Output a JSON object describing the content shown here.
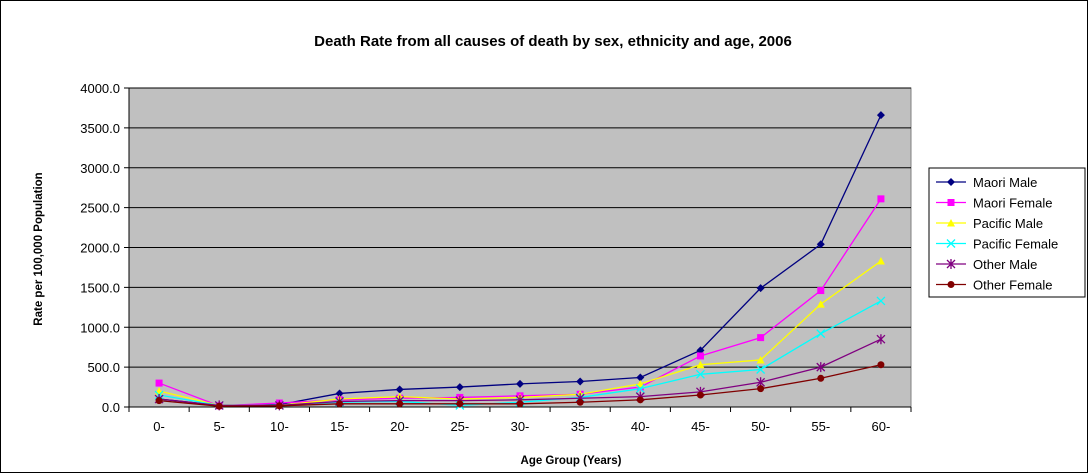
{
  "chart_data": {
    "type": "line",
    "title": "Death Rate from all causes of death by sex, ethnicity and age, 2006",
    "xlabel": "Age Group (Years)",
    "ylabel": "Rate per 100,000 Population",
    "categories": [
      "0-",
      "5-",
      "10-",
      "15-",
      "20-",
      "25-",
      "30-",
      "35-",
      "40-",
      "45-",
      "50-",
      "55-",
      "60-"
    ],
    "ylim": [
      0,
      4000
    ],
    "yticks": [
      "0.0",
      "500.0",
      "1000.0",
      "1500.0",
      "2000.0",
      "2500.0",
      "3000.0",
      "3500.0",
      "4000.0"
    ],
    "grid": true,
    "plot_background": "#C0C0C0",
    "legend_position": "right",
    "series": [
      {
        "name": "Maori Male",
        "color": "#000080",
        "marker": "diamond",
        "values": [
          100,
          20,
          30,
          170,
          220,
          250,
          290,
          320,
          370,
          710,
          1490,
          2040,
          3660
        ]
      },
      {
        "name": "Maori Female",
        "color": "#FF00FF",
        "marker": "square",
        "values": [
          300,
          15,
          50,
          90,
          110,
          120,
          140,
          160,
          250,
          640,
          870,
          1460,
          2610
        ]
      },
      {
        "name": "Pacific Male",
        "color": "#FFFF00",
        "marker": "triangle",
        "values": [
          200,
          20,
          20,
          100,
          130,
          100,
          120,
          160,
          290,
          530,
          590,
          1290,
          1830
        ]
      },
      {
        "name": "Pacific Female",
        "color": "#00FFFF",
        "marker": "x",
        "values": [
          150,
          20,
          20,
          60,
          70,
          20,
          60,
          120,
          230,
          410,
          470,
          920,
          1330
        ]
      },
      {
        "name": "Other Male",
        "color": "#800080",
        "marker": "star",
        "values": [
          100,
          20,
          20,
          70,
          80,
          80,
          90,
          110,
          130,
          190,
          310,
          500,
          850
        ]
      },
      {
        "name": "Other Female",
        "color": "#800000",
        "marker": "circle",
        "values": [
          80,
          10,
          15,
          40,
          40,
          40,
          40,
          60,
          90,
          150,
          230,
          360,
          530
        ]
      }
    ]
  }
}
